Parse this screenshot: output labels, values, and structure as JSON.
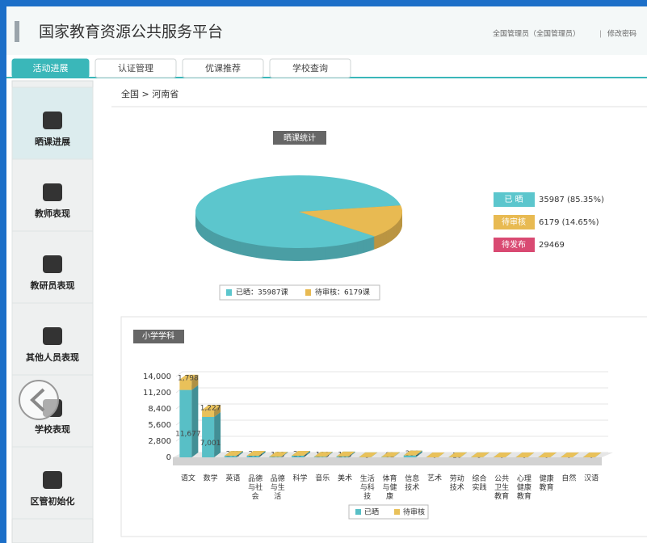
{
  "header": {
    "title": "国家教育资源公共服务平台",
    "user": "全国管理员（全国管理员）",
    "separator": "|",
    "change_password": "修改密码"
  },
  "tabs": [
    "活动进展",
    "认证管理",
    "优课推荐",
    "学校查询"
  ],
  "sidebar": [
    "晒课进展",
    "教师表现",
    "教研员表现",
    "其他人员表现",
    "学校表现",
    "区管初始化"
  ],
  "breadcrumb": "全国 > 河南省",
  "chart_data": [
    {
      "type": "pie",
      "title": "晒课统计",
      "legend_labels": [
        "已 晒",
        "待审核"
      ],
      "values": [
        35987,
        6179
      ],
      "value_labels": [
        "35987 (85.35%)",
        "6179 (14.65%)"
      ],
      "colors": [
        "#5cc6cd",
        "#e8ba52"
      ],
      "pending": {
        "label": "待发布",
        "value": 29469,
        "color": "#d94a72"
      },
      "legend": [
        "已晒：35987课",
        "待审核：6179课"
      ]
    },
    {
      "type": "bar",
      "title": "小学学科",
      "stacked": true,
      "categories": [
        "语文",
        "数学",
        "英语",
        "品德与社会",
        "品德与生活",
        "科学",
        "音乐",
        "美术",
        "生活与科技",
        "体育与健康",
        "信息技术",
        "艺术",
        "劳动技术",
        "综合实践",
        "公共卫生教育",
        "心理健康教育",
        "健康教育",
        "自然",
        "汉语"
      ],
      "series": [
        {
          "name": "已晒",
          "color": "#58bfc6",
          "values": [
            11677,
            7001,
            261,
            280,
            108,
            286,
            109,
            165,
            9,
            61,
            330,
            0,
            10,
            9,
            0,
            6,
            0,
            0,
            0
          ],
          "value_labels": [
            "11,677",
            "7,001",
            "261",
            "280",
            "108",
            "286",
            "109",
            "165",
            "9",
            "61",
            "330",
            "0",
            "10",
            "9",
            "0",
            "6",
            "0",
            "0",
            "0"
          ]
        },
        {
          "name": "待审核",
          "color": "#e9c15a",
          "values": [
            1798,
            1227,
            0,
            0,
            0,
            0,
            0,
            0,
            0,
            0,
            0,
            0,
            0,
            0,
            0,
            0,
            0,
            0,
            0
          ],
          "value_labels": [
            "1,798",
            "1,227",
            null,
            null,
            null,
            null,
            null,
            null,
            null,
            null,
            null,
            null,
            null,
            null,
            null,
            null,
            null,
            null,
            null
          ]
        }
      ],
      "ylim": [
        0,
        14000
      ],
      "yticks": [
        0,
        {
          "value": 2800,
          "label": "2,800"
        },
        {
          "value": 5600,
          "label": "5,600"
        },
        {
          "value": 8400,
          "label": "8,400"
        },
        {
          "value": 11200,
          "label": "11,200"
        },
        {
          "value": 14000,
          "label": "14,000"
        }
      ],
      "grid": true
    }
  ]
}
